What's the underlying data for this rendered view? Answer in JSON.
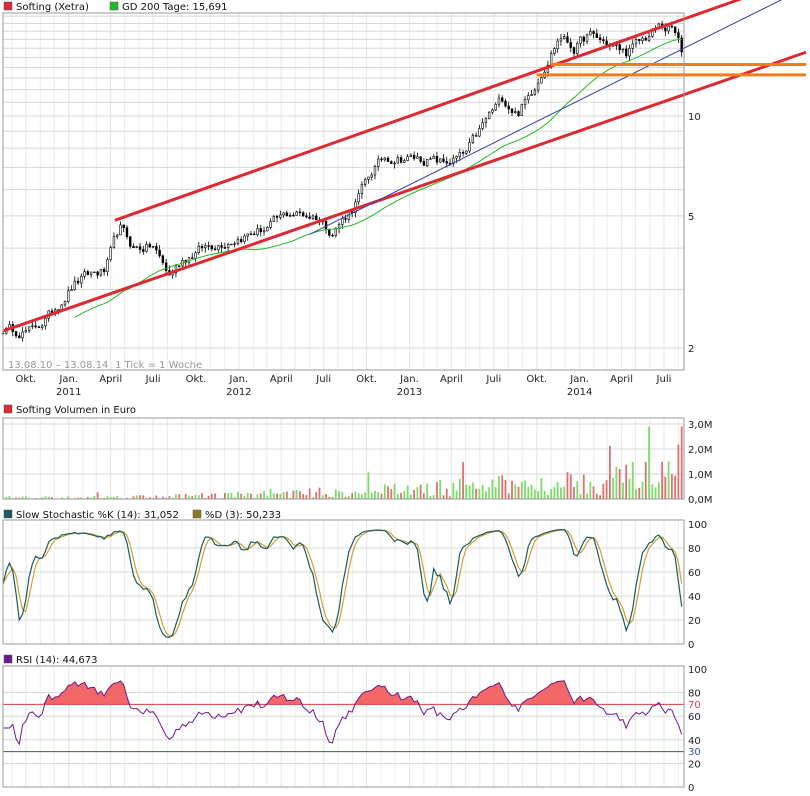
{
  "colors": {
    "price": "#000000",
    "sma": "#22bb22",
    "channel": "#dd2a32",
    "support": "#f07c1a",
    "trend": "#3040a0",
    "vol_up": "#7ddb6a",
    "vol_down": "#e07070",
    "stoch_k": "#1e5a60",
    "stoch_d": "#c8a23a",
    "rsi": "#6a1a8a",
    "rsi_fill": "#f26868",
    "rsi70": "#d04040",
    "rsi30": "#4050a0"
  },
  "chart_data": [
    {
      "type": "candlestick",
      "legend": [
        {
          "name": "Softing (Xetra)",
          "color": "#dd2a32"
        },
        {
          "name": "GD 200 Tage: 15,691",
          "color": "#22bb22"
        }
      ],
      "y_scale": "log",
      "y_ticks": [
        2,
        5,
        10
      ],
      "y_tick_labels": [
        "2",
        "5",
        "10"
      ],
      "range_label": "13.08.10 – 13.08.14",
      "interval_label": "1 Tick = 1 Woche",
      "x_tick_labels": [
        "Okt.",
        "Jan.",
        "April",
        "Juli",
        "Okt.",
        "Jan.",
        "April",
        "Juli",
        "Okt.",
        "Jan.",
        "April",
        "Juli",
        "Okt.",
        "Jan.",
        "April",
        "Juli"
      ],
      "x_tick_dates": [
        "2010-10-01",
        "2011-01-01",
        "2011-04-01",
        "2011-07-01",
        "2011-10-01",
        "2012-01-01",
        "2012-04-01",
        "2012-07-01",
        "2012-10-01",
        "2013-01-01",
        "2013-04-01",
        "2013-07-01",
        "2013-10-01",
        "2014-01-01",
        "2014-04-01",
        "2014-07-01"
      ],
      "year_labels": [
        "2011",
        "2012",
        "2013",
        "2014"
      ],
      "year_dates": [
        "2011-01-01",
        "2012-01-01",
        "2013-01-01",
        "2014-01-01"
      ],
      "price_keypoints": [
        {
          "date": "2010-08-13",
          "close": 2.28
        },
        {
          "date": "2010-10-15",
          "close": 2.25
        },
        {
          "date": "2010-11-20",
          "close": 2.5
        },
        {
          "date": "2011-01-10",
          "close": 3.1
        },
        {
          "date": "2011-02-20",
          "close": 3.35
        },
        {
          "date": "2011-03-20",
          "close": 3.4
        },
        {
          "date": "2011-04-20",
          "close": 4.6
        },
        {
          "date": "2011-05-20",
          "close": 4.0
        },
        {
          "date": "2011-07-01",
          "close": 4.05
        },
        {
          "date": "2011-08-05",
          "close": 3.3
        },
        {
          "date": "2011-09-01",
          "close": 3.7
        },
        {
          "date": "2011-10-15",
          "close": 4.0
        },
        {
          "date": "2011-12-01",
          "close": 4.2
        },
        {
          "date": "2012-01-20",
          "close": 4.4
        },
        {
          "date": "2012-03-01",
          "close": 4.6
        },
        {
          "date": "2012-04-20",
          "close": 5.1
        },
        {
          "date": "2012-06-15",
          "close": 5.0
        },
        {
          "date": "2012-07-20",
          "close": 4.5
        },
        {
          "date": "2012-09-01",
          "close": 5.3
        },
        {
          "date": "2012-10-15",
          "close": 6.9
        },
        {
          "date": "2012-11-10",
          "close": 7.5
        },
        {
          "date": "2012-12-20",
          "close": 7.5
        },
        {
          "date": "2013-02-01",
          "close": 7.4
        },
        {
          "date": "2013-03-15",
          "close": 7.2
        },
        {
          "date": "2013-05-01",
          "close": 7.6
        },
        {
          "date": "2013-06-20",
          "close": 10.0
        },
        {
          "date": "2013-07-20",
          "close": 11.3
        },
        {
          "date": "2013-08-20",
          "close": 10.2
        },
        {
          "date": "2013-09-15",
          "close": 11.5
        },
        {
          "date": "2013-10-15",
          "close": 14.0
        },
        {
          "date": "2013-11-20",
          "close": 17.5
        },
        {
          "date": "2013-12-20",
          "close": 16.0
        },
        {
          "date": "2014-01-20",
          "close": 17.5
        },
        {
          "date": "2014-03-01",
          "close": 16.5
        },
        {
          "date": "2014-04-10",
          "close": 15.5
        },
        {
          "date": "2014-05-20",
          "close": 17.0
        },
        {
          "date": "2014-06-20",
          "close": 18.5
        },
        {
          "date": "2014-07-20",
          "close": 18.2
        },
        {
          "date": "2014-08-13",
          "close": 15.6
        }
      ],
      "channel_upper": {
        "start": {
          "date": "2011-04-10",
          "value": 4.85
        },
        "end": {
          "date": "2014-08-13",
          "value": 19.6
        }
      },
      "channel_lower": {
        "start": {
          "date": "2010-08-13",
          "value": 2.25
        },
        "end": {
          "date": "2014-08-13",
          "value": 11.6
        }
      },
      "trend_line": {
        "start": {
          "date": "2012-06-01",
          "value": 4.4
        },
        "end": {
          "date": "2014-08-13",
          "value": 16.0
        }
      },
      "support_levels": [
        {
          "value": 14.3,
          "from": "2013-11-01"
        },
        {
          "value": 13.3,
          "from": "2013-10-01"
        }
      ]
    },
    {
      "type": "bar",
      "legend": [
        {
          "name": "Softing Volumen in Euro",
          "color": "#dd2a32"
        }
      ],
      "y_ticks": [
        0,
        1000000,
        2000000,
        3000000
      ],
      "y_tick_labels": [
        "0,0M",
        "1,0M",
        "2,0M",
        "3,0M"
      ],
      "ylim": [
        0,
        3000000
      ],
      "max_value": 2900000
    },
    {
      "type": "line",
      "legend": [
        {
          "name": "Slow Stochastic %K (14): 31,052",
          "color": "#1e5a60"
        },
        {
          "name": "%D (3): 50,233",
          "color": "#8a7a20"
        }
      ],
      "y_ticks": [
        0,
        20,
        40,
        60,
        80,
        100
      ],
      "y_tick_labels": [
        "0",
        "20",
        "40",
        "60",
        "80",
        "100"
      ],
      "ylim": [
        0,
        100
      ],
      "last_k": 31.052,
      "last_d": 50.233
    },
    {
      "type": "line",
      "legend": [
        {
          "name": "RSI (14): 44,673",
          "color": "#6a1a8a"
        }
      ],
      "y_ticks": [
        0,
        20,
        40,
        60,
        80,
        100
      ],
      "y_tick_labels": [
        "0",
        "20",
        "40",
        "60",
        "80",
        "100"
      ],
      "ylim": [
        0,
        100
      ],
      "level_labels": [
        "70",
        "30"
      ],
      "levels": [
        70,
        30
      ],
      "last_value": 44.673
    }
  ]
}
